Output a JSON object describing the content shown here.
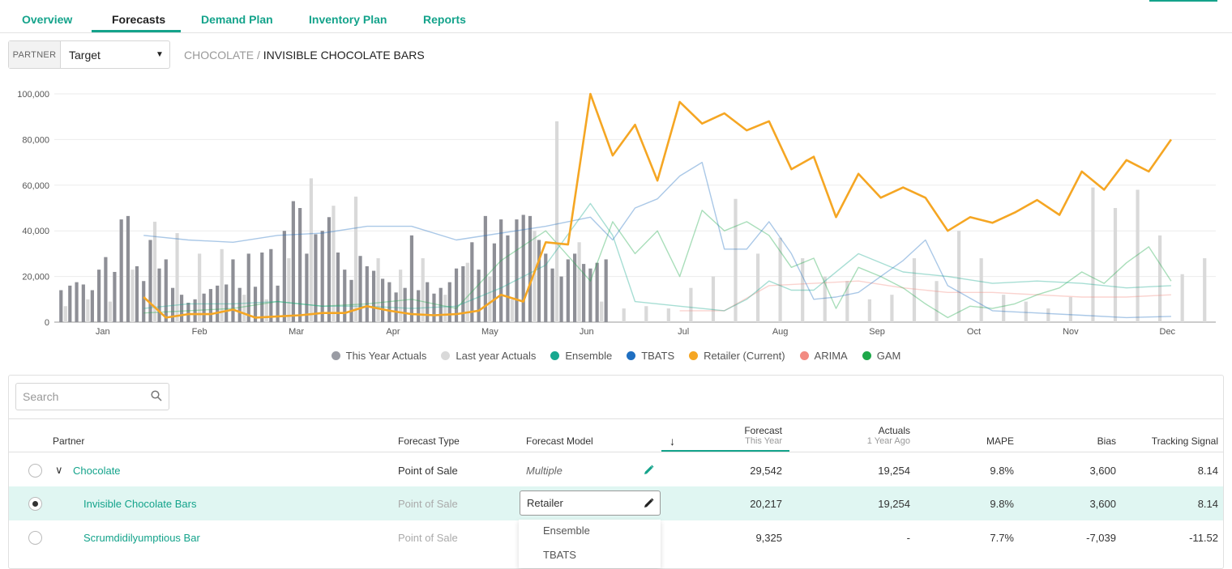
{
  "nav": {
    "tabs": [
      {
        "label": "Overview"
      },
      {
        "label": "Forecasts"
      },
      {
        "label": "Demand Plan"
      },
      {
        "label": "Inventory Plan"
      },
      {
        "label": "Reports"
      }
    ],
    "active_tab": "Forecasts"
  },
  "filter": {
    "partner_label": "PARTNER",
    "partner_value": "Target"
  },
  "breadcrumb": {
    "parent": "CHOCOLATE",
    "separator": " / ",
    "current": "INVISIBLE CHOCOLATE BARS"
  },
  "legend": [
    {
      "label": "This Year Actuals",
      "color": "#9a9ca4"
    },
    {
      "label": "Last year Actuals",
      "color": "#d9d9d9"
    },
    {
      "label": "Ensemble",
      "color": "#17a88f"
    },
    {
      "label": "TBATS",
      "color": "#1f6fc1"
    },
    {
      "label": "Retailer (Current)",
      "color": "#f5a623"
    },
    {
      "label": "ARIMA",
      "color": "#f28b82"
    },
    {
      "label": "GAM",
      "color": "#1ea84a"
    }
  ],
  "chart_data": {
    "type": "line",
    "ylim": [
      0,
      100000
    ],
    "y_ticks": [
      "0",
      "20,000",
      "40,000",
      "60,000",
      "80,000",
      "100,000"
    ],
    "months": [
      "Jan",
      "Feb",
      "Mar",
      "Apr",
      "May",
      "Jun",
      "Jul",
      "Aug",
      "Sep",
      "Oct",
      "Nov",
      "Dec"
    ],
    "x_range": [
      0,
      52
    ],
    "grid": true,
    "this_year_actuals": {
      "x": [
        0.3,
        0.7,
        1,
        1.3,
        1.7,
        2,
        2.3,
        2.7,
        3,
        3.3,
        3.7,
        4,
        4.3,
        4.7,
        5,
        5.3,
        5.7,
        6,
        6.3,
        6.7,
        7,
        7.3,
        7.7,
        8,
        8.3,
        8.7,
        9,
        9.3,
        9.7,
        10,
        10.3,
        10.7,
        11,
        11.3,
        11.7,
        12,
        12.3,
        12.7,
        13,
        13.3,
        13.7,
        14,
        14.3,
        14.7,
        15,
        15.3,
        15.7,
        16,
        16.3,
        16.7,
        17,
        17.3,
        17.7,
        18,
        18.3,
        18.7,
        19,
        19.3,
        19.7,
        20,
        20.3,
        20.7,
        21,
        21.3,
        21.7,
        22,
        22.3,
        22.7,
        23,
        23.3,
        23.7,
        24,
        24.3,
        24.7
      ],
      "values": [
        14000,
        16000,
        17500,
        16500,
        14000,
        23000,
        28500,
        22000,
        45000,
        46500,
        24500,
        18000,
        36000,
        23500,
        27500,
        15000,
        12000,
        8500,
        10000,
        12500,
        14500,
        16000,
        16500,
        27500,
        15000,
        30000,
        15500,
        30500,
        32000,
        16000,
        40000,
        53000,
        50000,
        30000,
        38500,
        40000,
        46000,
        30500,
        23000,
        18500,
        29000,
        24500,
        22500,
        19000,
        17500,
        13000,
        15000,
        38000,
        14000,
        17500,
        12500,
        15000,
        17500,
        23500,
        24500,
        35000,
        23000,
        46500,
        34500,
        45000,
        38000,
        45000,
        47000,
        46500,
        36000,
        30000,
        23500,
        20000,
        27500,
        30000,
        25500,
        23500,
        26000,
        27500
      ]
    },
    "last_year_actuals": {
      "x": [
        0.5,
        1.5,
        2.5,
        3.5,
        4.5,
        5.5,
        6.5,
        7.5,
        8.5,
        9.5,
        10.5,
        11.5,
        12.5,
        13.5,
        14.5,
        15.5,
        16.5,
        17.5,
        18.5,
        19.5,
        20.5,
        21.5,
        22.5,
        23.5,
        24.5,
        25.5,
        26.5,
        27.5,
        28.5,
        29.5,
        30.5,
        31.5,
        32.5,
        33.5,
        34.5,
        35.5,
        36.5,
        37.5,
        38.5,
        39.5,
        40.5,
        41.5,
        42.5,
        43.5,
        44.5,
        45.5,
        46.5,
        47.5,
        48.5,
        49.5,
        50.5,
        51.5
      ],
      "values": [
        7000,
        10000,
        9000,
        23000,
        44000,
        39000,
        30000,
        32000,
        12000,
        10000,
        28000,
        63000,
        51000,
        55000,
        28000,
        23000,
        28000,
        12000,
        26000,
        20000,
        10000,
        40000,
        88000,
        35000,
        9000,
        6000,
        7000,
        6000,
        15000,
        20000,
        54000,
        30000,
        37000,
        28000,
        20000,
        18000,
        10000,
        12000,
        28000,
        18000,
        40000,
        28000,
        12000,
        9000,
        6000,
        11000,
        59000,
        50000,
        58000,
        38000,
        21000,
        28000
      ]
    },
    "series": [
      {
        "name": "Retailer (Current)",
        "color": "#f5a623",
        "x": [
          4,
          5,
          6,
          7,
          8,
          9,
          10,
          11,
          12,
          13,
          14,
          15,
          16,
          17,
          18,
          19,
          20,
          21,
          22,
          23,
          24,
          25,
          26,
          27,
          28,
          29,
          30,
          31,
          32,
          33,
          34,
          35,
          36,
          37,
          38,
          39,
          40,
          41,
          42,
          43,
          44,
          45,
          46,
          47,
          48,
          49,
          50
        ],
        "values": [
          11000,
          2000,
          3500,
          3500,
          5500,
          2000,
          2500,
          3000,
          4000,
          4000,
          7000,
          5000,
          3500,
          3000,
          3500,
          5000,
          12000,
          9000,
          35000,
          34000,
          100000,
          73000,
          86500,
          62000,
          96500,
          87000,
          91500,
          84000,
          88000,
          67000,
          72500,
          46000,
          65000,
          54500,
          59000,
          54500,
          40000,
          46000,
          43500,
          48000,
          53500,
          47000,
          66000,
          58000,
          71000,
          66000,
          80000
        ]
      },
      {
        "name": "Ensemble",
        "color": "#17a88f",
        "x": [
          4,
          6,
          8,
          10,
          12,
          14,
          16,
          18,
          20,
          22,
          24,
          25,
          26,
          28,
          30,
          31,
          32,
          33,
          34,
          36,
          38,
          40,
          42,
          44,
          46,
          48,
          50
        ],
        "values": [
          6000,
          8000,
          8000,
          9000,
          7000,
          7000,
          6000,
          7000,
          15000,
          25000,
          52000,
          38000,
          9000,
          7000,
          5000,
          10000,
          18000,
          14000,
          14000,
          30000,
          22000,
          20000,
          17000,
          18000,
          17000,
          15000,
          16000
        ]
      },
      {
        "name": "TBATS",
        "color": "#1f6fc1",
        "x": [
          4,
          6,
          8,
          10,
          12,
          14,
          16,
          18,
          20,
          22,
          24,
          25,
          26,
          27,
          28,
          29,
          30,
          31,
          32,
          33,
          34,
          35,
          36,
          37,
          38,
          39,
          40,
          42,
          44,
          46,
          48,
          50
        ],
        "values": [
          38000,
          36000,
          35000,
          38000,
          39000,
          42000,
          42000,
          36000,
          39000,
          42000,
          46000,
          36000,
          50000,
          54000,
          64000,
          70000,
          32000,
          32000,
          44000,
          30000,
          10000,
          11000,
          13000,
          20000,
          27000,
          36000,
          16000,
          5000,
          4000,
          3000,
          2000,
          2500
        ]
      },
      {
        "name": "ARIMA",
        "color": "#f28b82",
        "x": [
          28,
          30,
          32,
          34,
          36,
          38,
          40,
          42,
          44,
          46,
          48,
          50
        ],
        "values": [
          5000,
          5000,
          16000,
          17000,
          18000,
          15000,
          13000,
          13000,
          12000,
          11000,
          11000,
          12000
        ]
      },
      {
        "name": "GAM",
        "color": "#1ea84a",
        "x": [
          4,
          6,
          8,
          10,
          12,
          14,
          16,
          18,
          20,
          22,
          24,
          25,
          26,
          27,
          28,
          29,
          30,
          31,
          32,
          33,
          34,
          35,
          36,
          37,
          38,
          39,
          40,
          41,
          42,
          43,
          44,
          45,
          46,
          47,
          48,
          49,
          50
        ],
        "values": [
          4000,
          5000,
          6000,
          9000,
          7000,
          8000,
          10000,
          6000,
          27000,
          40000,
          18000,
          44000,
          30000,
          40000,
          20000,
          49000,
          40000,
          44000,
          38000,
          24000,
          28000,
          6000,
          24000,
          20000,
          15000,
          8000,
          2000,
          7000,
          6000,
          8000,
          12000,
          15000,
          22000,
          17000,
          26000,
          33000,
          18000
        ]
      }
    ]
  },
  "search": {
    "placeholder": "Search"
  },
  "table": {
    "headers": {
      "partner": "Partner",
      "forecast_type": "Forecast Type",
      "forecast_model": "Forecast Model",
      "sort_arrow": "↓",
      "forecast": "Forecast",
      "forecast_sub": "This Year",
      "actuals": "Actuals",
      "actuals_sub": "1 Year Ago",
      "mape": "MAPE",
      "bias": "Bias",
      "tracking": "Tracking Signal"
    },
    "rows": [
      {
        "partner": "Chocolate",
        "expand": "∨",
        "type": "Point of Sale",
        "model": "Multiple",
        "forecast": "29,542",
        "actuals": "19,254",
        "mape": "9.8%",
        "bias": "3,600",
        "tracking": "8.14"
      },
      {
        "partner": "Invisible Chocolate Bars",
        "type": "Point of Sale",
        "model": "Retailer",
        "forecast": "20,217",
        "actuals": "19,254",
        "mape": "9.8%",
        "bias": "3,600",
        "tracking": "8.14"
      },
      {
        "partner": "Scrumdidilyumptious Bar",
        "type": "Point of Sale",
        "model": "",
        "forecast": "9,325",
        "actuals": "-",
        "mape": "7.7%",
        "bias": "-7,039",
        "tracking": "-11.52"
      }
    ]
  },
  "model_dropdown": {
    "options": [
      "Ensemble",
      "TBATS"
    ]
  }
}
